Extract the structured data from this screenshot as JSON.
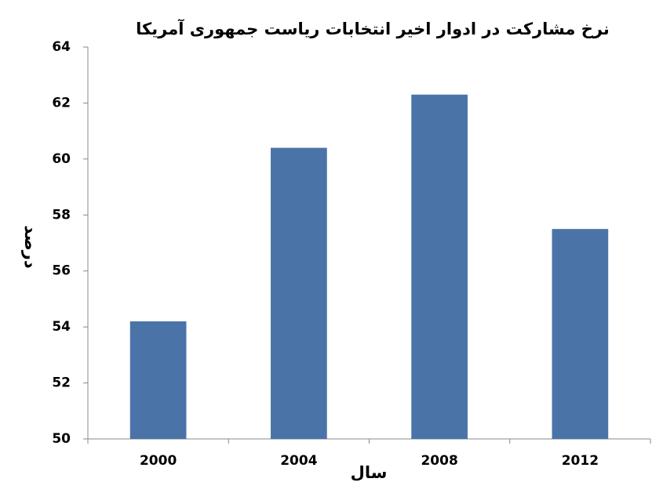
{
  "chart_data": {
    "type": "bar",
    "title": "نرخ مشارکت در ادوار اخیر  انتخابات ریاست جمهوری آمریکا",
    "x_label": "سال",
    "y_label": "درصد",
    "categories": [
      "2000",
      "2004",
      "2008",
      "2012"
    ],
    "values": [
      54.2,
      60.4,
      62.3,
      57.5
    ],
    "color": "#4a74a8",
    "ylim": [
      50,
      64
    ],
    "yticks": [
      50,
      52,
      54,
      56,
      58,
      60,
      62,
      64
    ],
    "grid": false
  }
}
